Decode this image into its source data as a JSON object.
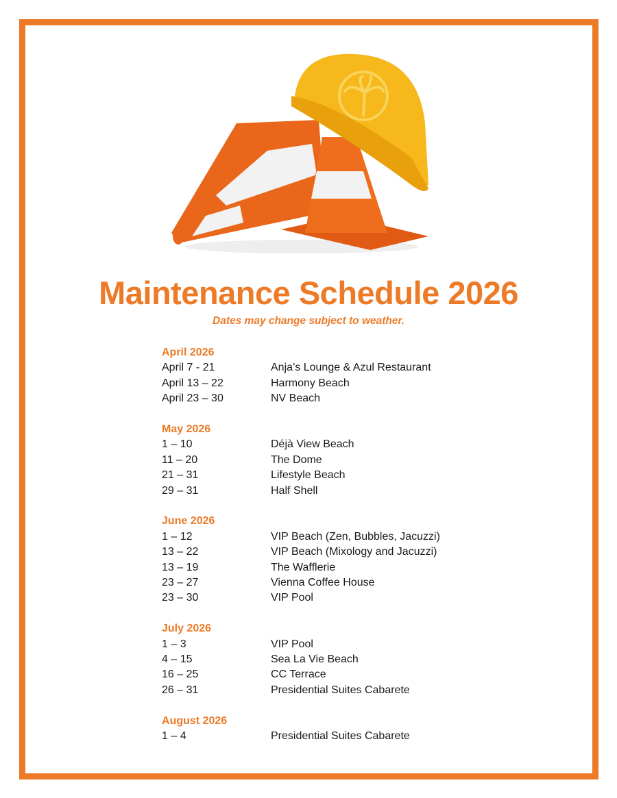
{
  "title": "Maintenance Schedule 2026",
  "subtitle": "Dates may change subject to weather.",
  "colors": {
    "accent": "#ec7a26"
  },
  "illustration": "traffic-cones-and-hardhat-with-palm-tree-logo",
  "groups": [
    {
      "heading": "April 2026",
      "rows": [
        {
          "dates": "April 7 - 21",
          "location": "Anja’s Lounge & Azul Restaurant"
        },
        {
          "dates": "April 13 – 22",
          "location": "Harmony Beach"
        },
        {
          "dates": "April 23 – 30",
          "location": "NV Beach"
        }
      ]
    },
    {
      "heading": "May 2026",
      "rows": [
        {
          "dates": "1 – 10",
          "location": "Déjà View Beach"
        },
        {
          "dates": "11 – 20",
          "location": "The Dome"
        },
        {
          "dates": "21 – 31",
          "location": "Lifestyle Beach"
        },
        {
          "dates": "29 – 31",
          "location": "Half Shell"
        }
      ]
    },
    {
      "heading": "June 2026",
      "rows": [
        {
          "dates": "1 – 12",
          "location": "VIP Beach (Zen, Bubbles, Jacuzzi)"
        },
        {
          "dates": "13 – 22",
          "location": "VIP Beach (Mixology and Jacuzzi)"
        },
        {
          "dates": "13 – 19",
          "location": "The Wafflerie"
        },
        {
          "dates": "23 – 27",
          "location": "Vienna Coffee House"
        },
        {
          "dates": "23 – 30",
          "location": "VIP Pool"
        }
      ]
    },
    {
      "heading": "July 2026",
      "rows": [
        {
          "dates": "1 – 3",
          "location": "VIP Pool"
        },
        {
          "dates": "4 – 15",
          "location": "Sea La Vie Beach"
        },
        {
          "dates": "16 – 25",
          "location": "CC Terrace"
        },
        {
          "dates": "26 – 31",
          "location": "Presidential Suites Cabarete"
        }
      ]
    },
    {
      "heading": "August 2026",
      "rows": [
        {
          "dates": "1 – 4",
          "location": "Presidential Suites Cabarete"
        }
      ]
    }
  ]
}
